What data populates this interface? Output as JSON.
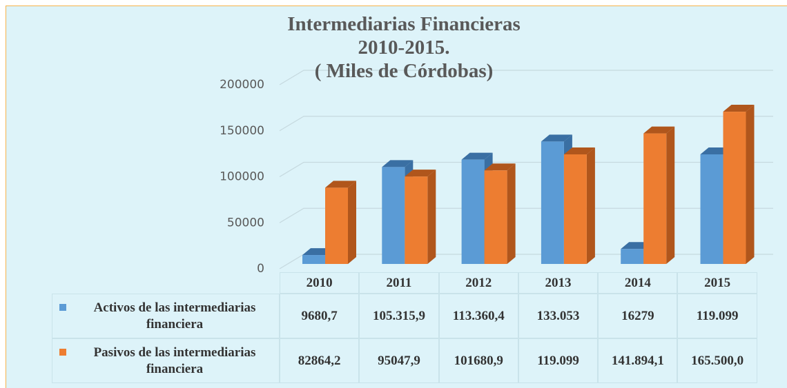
{
  "chart_data": {
    "type": "bar3d",
    "title": [
      "Intermediarias Financieras",
      "2010-2015.",
      "( Miles de Córdobas)"
    ],
    "categories": [
      "2010",
      "2011",
      "2012",
      "2013",
      "2014",
      "2015"
    ],
    "series": [
      {
        "name": "Activos de las intermediarias financiera",
        "color": "#5b9bd5",
        "side": "#3a6fa3",
        "values": [
          9680.7,
          105315.9,
          113360.4,
          133053,
          16279,
          119099
        ],
        "value_labels": [
          "9680,7",
          "105.315,9",
          "113.360,4",
          "133.053",
          "16279",
          "119.099"
        ]
      },
      {
        "name": "Pasivos de las intermediarias financiera",
        "color": "#ed7d31",
        "side": "#b0561c",
        "values": [
          82864.2,
          95047.9,
          101680.9,
          119099,
          141894.1,
          165500.0
        ],
        "value_labels": [
          "82864,2",
          "95047,9",
          "101680,9",
          "119.099",
          "141.894,1",
          "165.500,0"
        ]
      }
    ],
    "ylim": [
      0,
      200000
    ],
    "yticks": [
      0,
      50000,
      100000,
      150000,
      200000
    ],
    "grid": true
  }
}
